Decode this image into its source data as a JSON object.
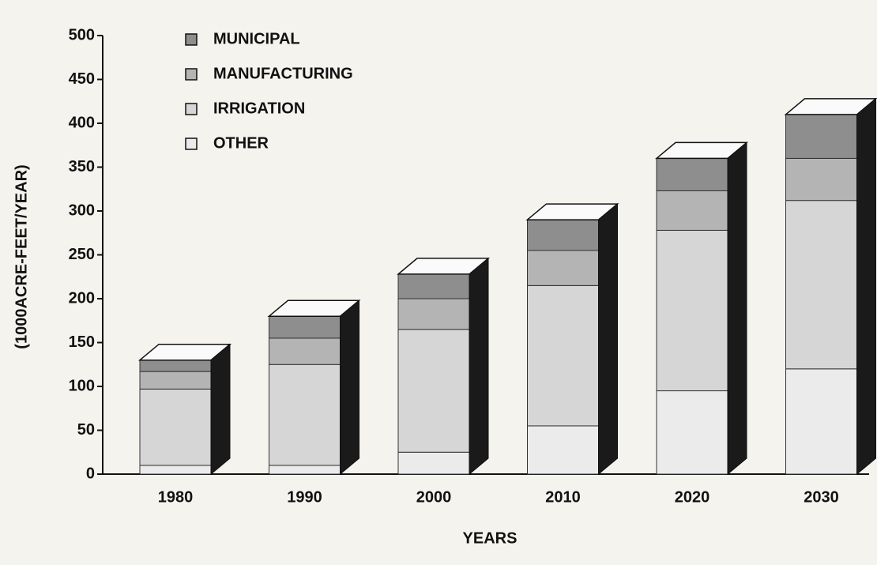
{
  "chart_data": {
    "type": "stacked_bar_3d",
    "y_label": "(1000ACRE-FEET/YEAR)",
    "x_label": "YEARS",
    "categories": [
      "1980",
      "1990",
      "2000",
      "2010",
      "2020",
      "2030"
    ],
    "series": [
      {
        "name": "MUNICIPAL",
        "color": "#8e8e8e",
        "values": [
          13,
          25,
          28,
          35,
          37,
          50
        ]
      },
      {
        "name": "MANUFACTURING",
        "color": "#b4b4b4",
        "values": [
          20,
          30,
          35,
          40,
          45,
          48
        ]
      },
      {
        "name": "IRRIGATION",
        "color": "#d6d6d6",
        "values": [
          87,
          115,
          140,
          160,
          183,
          192
        ]
      },
      {
        "name": "OTHER",
        "color": "#ebebeb",
        "values": [
          10,
          10,
          25,
          55,
          95,
          120
        ]
      }
    ],
    "ylim": [
      0,
      500
    ],
    "yticks": [
      0,
      50,
      100,
      150,
      200,
      250,
      300,
      350,
      400,
      450,
      500
    ]
  }
}
